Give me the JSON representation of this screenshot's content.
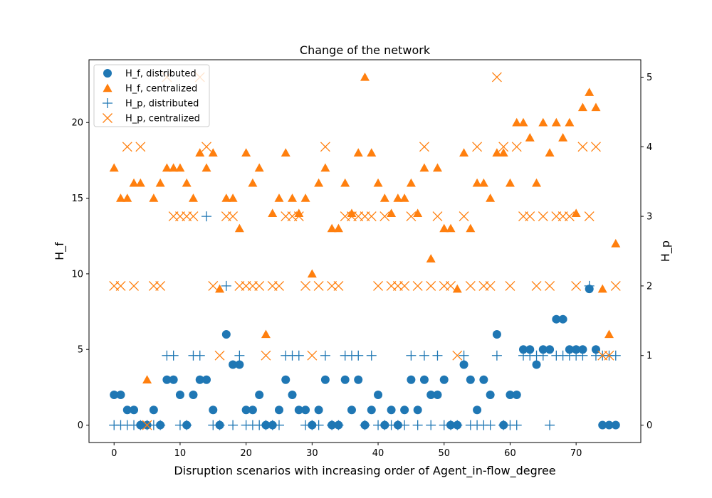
{
  "chart_data": {
    "type": "scatter",
    "title": "Change of the network",
    "xlabel": "Disruption scenarios with increasing order of Agent_in-flow_degree",
    "ylabel_left": "H_f",
    "ylabel_right": "H_p",
    "xlim": [
      -3.8,
      79.8
    ],
    "ylim_left": [
      -1.15,
      24.15
    ],
    "ylim_right": [
      -0.25,
      5.25
    ],
    "x_ticks": [
      0,
      10,
      20,
      30,
      40,
      50,
      60,
      70
    ],
    "y_left_ticks": [
      0,
      5,
      10,
      15,
      20
    ],
    "y_right_ticks": [
      0,
      1,
      2,
      3,
      4,
      5
    ],
    "legend_position": "upper-left",
    "colors": {
      "blue": "#1f77b4",
      "orange": "#ff7f0e"
    },
    "series": [
      {
        "name": "H_f, distributed",
        "axis": "left",
        "marker": "circle",
        "color": "#1f77b4",
        "x": [
          0,
          1,
          2,
          3,
          4,
          5,
          6,
          7,
          8,
          9,
          10,
          11,
          12,
          13,
          14,
          15,
          16,
          17,
          18,
          19,
          20,
          21,
          22,
          23,
          24,
          25,
          26,
          27,
          28,
          29,
          30,
          31,
          32,
          33,
          34,
          35,
          36,
          37,
          38,
          39,
          40,
          41,
          42,
          43,
          44,
          45,
          46,
          47,
          48,
          49,
          50,
          51,
          52,
          53,
          54,
          55,
          56,
          57,
          58,
          59,
          60,
          61,
          62,
          63,
          64,
          65,
          66,
          67,
          68,
          69,
          70,
          71,
          72,
          73,
          74,
          75,
          76
        ],
        "y": [
          2,
          2,
          1,
          1,
          0,
          0,
          1,
          0,
          3,
          3,
          2,
          0,
          2,
          3,
          3,
          1,
          0,
          6,
          4,
          4,
          1,
          1,
          2,
          0,
          0,
          1,
          3,
          2,
          1,
          1,
          0,
          1,
          3,
          0,
          0,
          3,
          1,
          3,
          0,
          1,
          2,
          0,
          1,
          0,
          1,
          3,
          1,
          3,
          2,
          2,
          3,
          0,
          0,
          4,
          3,
          1,
          3,
          2,
          6,
          0,
          2,
          2,
          5,
          5,
          4,
          5,
          5,
          7,
          7,
          5,
          5,
          5,
          9,
          5,
          0,
          0,
          0
        ]
      },
      {
        "name": "H_f, centralized",
        "axis": "left",
        "marker": "triangle",
        "color": "#ff7f0e",
        "x": [
          0,
          1,
          2,
          3,
          4,
          5,
          6,
          7,
          8,
          9,
          10,
          11,
          12,
          13,
          14,
          15,
          16,
          17,
          18,
          19,
          20,
          21,
          22,
          23,
          24,
          25,
          26,
          27,
          28,
          29,
          30,
          31,
          32,
          33,
          34,
          35,
          36,
          37,
          38,
          39,
          40,
          41,
          42,
          43,
          44,
          45,
          46,
          47,
          48,
          49,
          50,
          51,
          52,
          53,
          54,
          55,
          56,
          57,
          58,
          59,
          60,
          61,
          62,
          63,
          64,
          65,
          66,
          67,
          68,
          69,
          70,
          71,
          72,
          73,
          74,
          75,
          76
        ],
        "y": [
          17,
          15,
          15,
          16,
          16,
          3,
          15,
          16,
          17,
          17,
          17,
          16,
          15,
          18,
          17,
          18,
          9,
          15,
          15,
          13,
          18,
          16,
          17,
          6,
          14,
          15,
          18,
          15,
          14,
          15,
          10,
          16,
          17,
          13,
          13,
          16,
          14,
          18,
          23,
          18,
          16,
          15,
          14,
          15,
          15,
          16,
          14,
          17,
          11,
          17,
          13,
          13,
          9,
          18,
          13,
          16,
          16,
          15,
          18,
          18,
          16,
          20,
          20,
          19,
          16,
          20,
          18,
          20,
          19,
          20,
          14,
          21,
          22,
          21,
          9,
          6,
          12
        ]
      },
      {
        "name": "H_p, distributed",
        "axis": "right",
        "marker": "plus",
        "color": "#1f77b4",
        "x": [
          0,
          1,
          2,
          3,
          4,
          5,
          6,
          7,
          8,
          9,
          10,
          11,
          12,
          13,
          14,
          15,
          16,
          17,
          18,
          19,
          20,
          21,
          22,
          23,
          24,
          25,
          26,
          27,
          28,
          29,
          30,
          31,
          32,
          33,
          34,
          35,
          36,
          37,
          38,
          39,
          40,
          41,
          42,
          43,
          44,
          45,
          46,
          47,
          48,
          49,
          50,
          51,
          52,
          53,
          54,
          55,
          56,
          57,
          58,
          59,
          60,
          61,
          62,
          63,
          64,
          65,
          66,
          67,
          68,
          69,
          70,
          71,
          72,
          73,
          74,
          75,
          76
        ],
        "y": [
          0,
          0,
          0,
          0,
          0,
          0,
          0,
          0,
          1,
          1,
          0,
          0,
          1,
          1,
          3,
          0,
          0,
          2,
          0,
          1,
          0,
          0,
          0,
          0,
          0,
          0,
          1,
          1,
          1,
          0,
          0,
          0,
          1,
          0,
          0,
          1,
          1,
          1,
          0,
          1,
          0,
          0,
          0,
          0,
          0,
          1,
          0,
          1,
          0,
          1,
          0,
          0,
          0,
          1,
          0,
          0,
          0,
          0,
          1,
          0,
          0,
          0,
          1,
          1,
          1,
          1,
          0,
          1,
          1,
          1,
          1,
          1,
          2,
          1,
          1,
          1,
          1
        ]
      },
      {
        "name": "H_p, centralized",
        "axis": "right",
        "marker": "x",
        "color": "#ff7f0e",
        "x": [
          0,
          1,
          2,
          3,
          4,
          5,
          6,
          7,
          8,
          9,
          10,
          11,
          12,
          13,
          14,
          15,
          16,
          17,
          18,
          19,
          20,
          21,
          22,
          23,
          24,
          25,
          26,
          27,
          28,
          29,
          30,
          31,
          32,
          33,
          34,
          35,
          36,
          37,
          38,
          39,
          40,
          41,
          42,
          43,
          44,
          45,
          46,
          47,
          48,
          49,
          50,
          51,
          52,
          53,
          54,
          55,
          56,
          57,
          58,
          59,
          60,
          61,
          62,
          63,
          64,
          65,
          66,
          67,
          68,
          69,
          70,
          71,
          72,
          73,
          74,
          75,
          76
        ],
        "y": [
          2,
          2,
          4,
          2,
          4,
          0,
          2,
          2,
          5,
          3,
          3,
          3,
          3,
          5,
          4,
          2,
          1,
          3,
          3,
          2,
          2,
          2,
          2,
          1,
          2,
          2,
          3,
          3,
          3,
          2,
          1,
          2,
          4,
          2,
          2,
          3,
          3,
          3,
          3,
          3,
          2,
          3,
          2,
          2,
          2,
          3,
          2,
          4,
          2,
          3,
          2,
          2,
          1,
          3,
          2,
          4,
          2,
          2,
          5,
          4,
          2,
          4,
          3,
          3,
          2,
          3,
          2,
          3,
          3,
          3,
          2,
          4,
          3,
          4,
          1,
          1,
          2
        ]
      }
    ]
  }
}
